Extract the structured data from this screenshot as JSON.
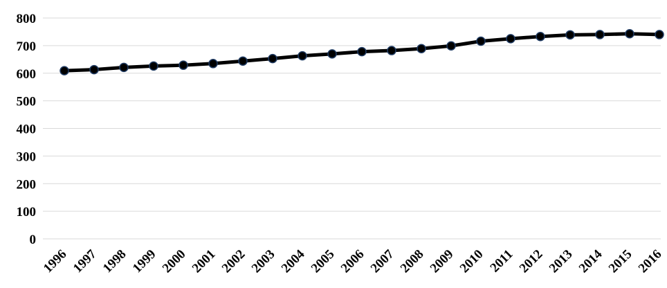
{
  "chart_data": {
    "type": "line",
    "title": "",
    "xlabel": "",
    "ylabel": "",
    "ylim": [
      0,
      800
    ],
    "yticks": [
      0,
      100,
      200,
      300,
      400,
      500,
      600,
      700,
      800
    ],
    "grid": true,
    "legend": "none",
    "categories": [
      "1996",
      "1997",
      "1998",
      "1999",
      "2000",
      "2001",
      "2002",
      "2003",
      "2004",
      "2005",
      "2006",
      "2007",
      "2008",
      "2009",
      "2010",
      "2011",
      "2012",
      "2013",
      "2014",
      "2015",
      "2016"
    ],
    "series": [
      {
        "values": [
          609,
          613,
          621,
          626,
          629,
          635,
          644,
          653,
          663,
          670,
          678,
          682,
          689,
          699,
          716,
          725,
          733,
          739,
          740,
          743,
          740
        ],
        "color": "#000000",
        "marker_edge_color": "#1f3b63"
      }
    ]
  }
}
